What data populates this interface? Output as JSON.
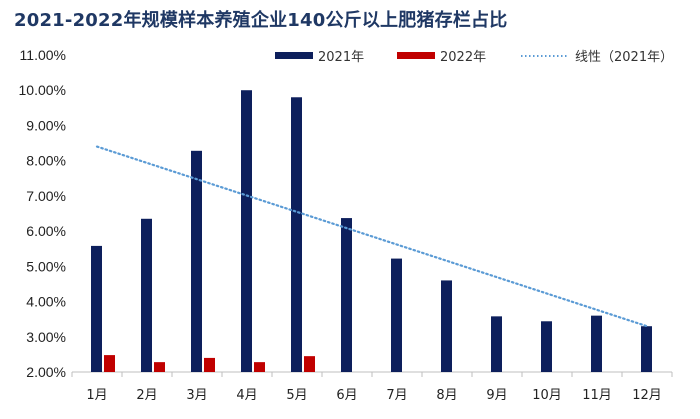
{
  "chart_data": {
    "type": "bar",
    "title": "2021-2022年规模样本养殖企业140公斤以上肥猪存栏占比",
    "categories": [
      "1月",
      "2月",
      "3月",
      "4月",
      "5月",
      "6月",
      "7月",
      "8月",
      "9月",
      "10月",
      "11月",
      "12月"
    ],
    "series": [
      {
        "name": "2021年",
        "values": [
          5.58,
          6.35,
          8.28,
          10.0,
          9.8,
          6.37,
          5.22,
          4.6,
          3.58,
          3.44,
          3.6,
          3.3
        ],
        "color": "#0d1f5c"
      },
      {
        "name": "2022年",
        "values": [
          2.48,
          2.28,
          2.4,
          2.28,
          2.45,
          null,
          null,
          null,
          null,
          null,
          null,
          null
        ],
        "color": "#c00000"
      }
    ],
    "trendline": {
      "name": "线性（2021年）",
      "type": "linear",
      "start": 8.4,
      "end": 3.3,
      "color": "#5b9bd5",
      "style": "dotted"
    },
    "ylim": [
      2.0,
      11.0
    ],
    "yticks": [
      "2.00%",
      "3.00%",
      "4.00%",
      "5.00%",
      "6.00%",
      "7.00%",
      "8.00%",
      "9.00%",
      "10.00%",
      "11.00%"
    ],
    "legend_position": "top-right",
    "grid": false
  }
}
